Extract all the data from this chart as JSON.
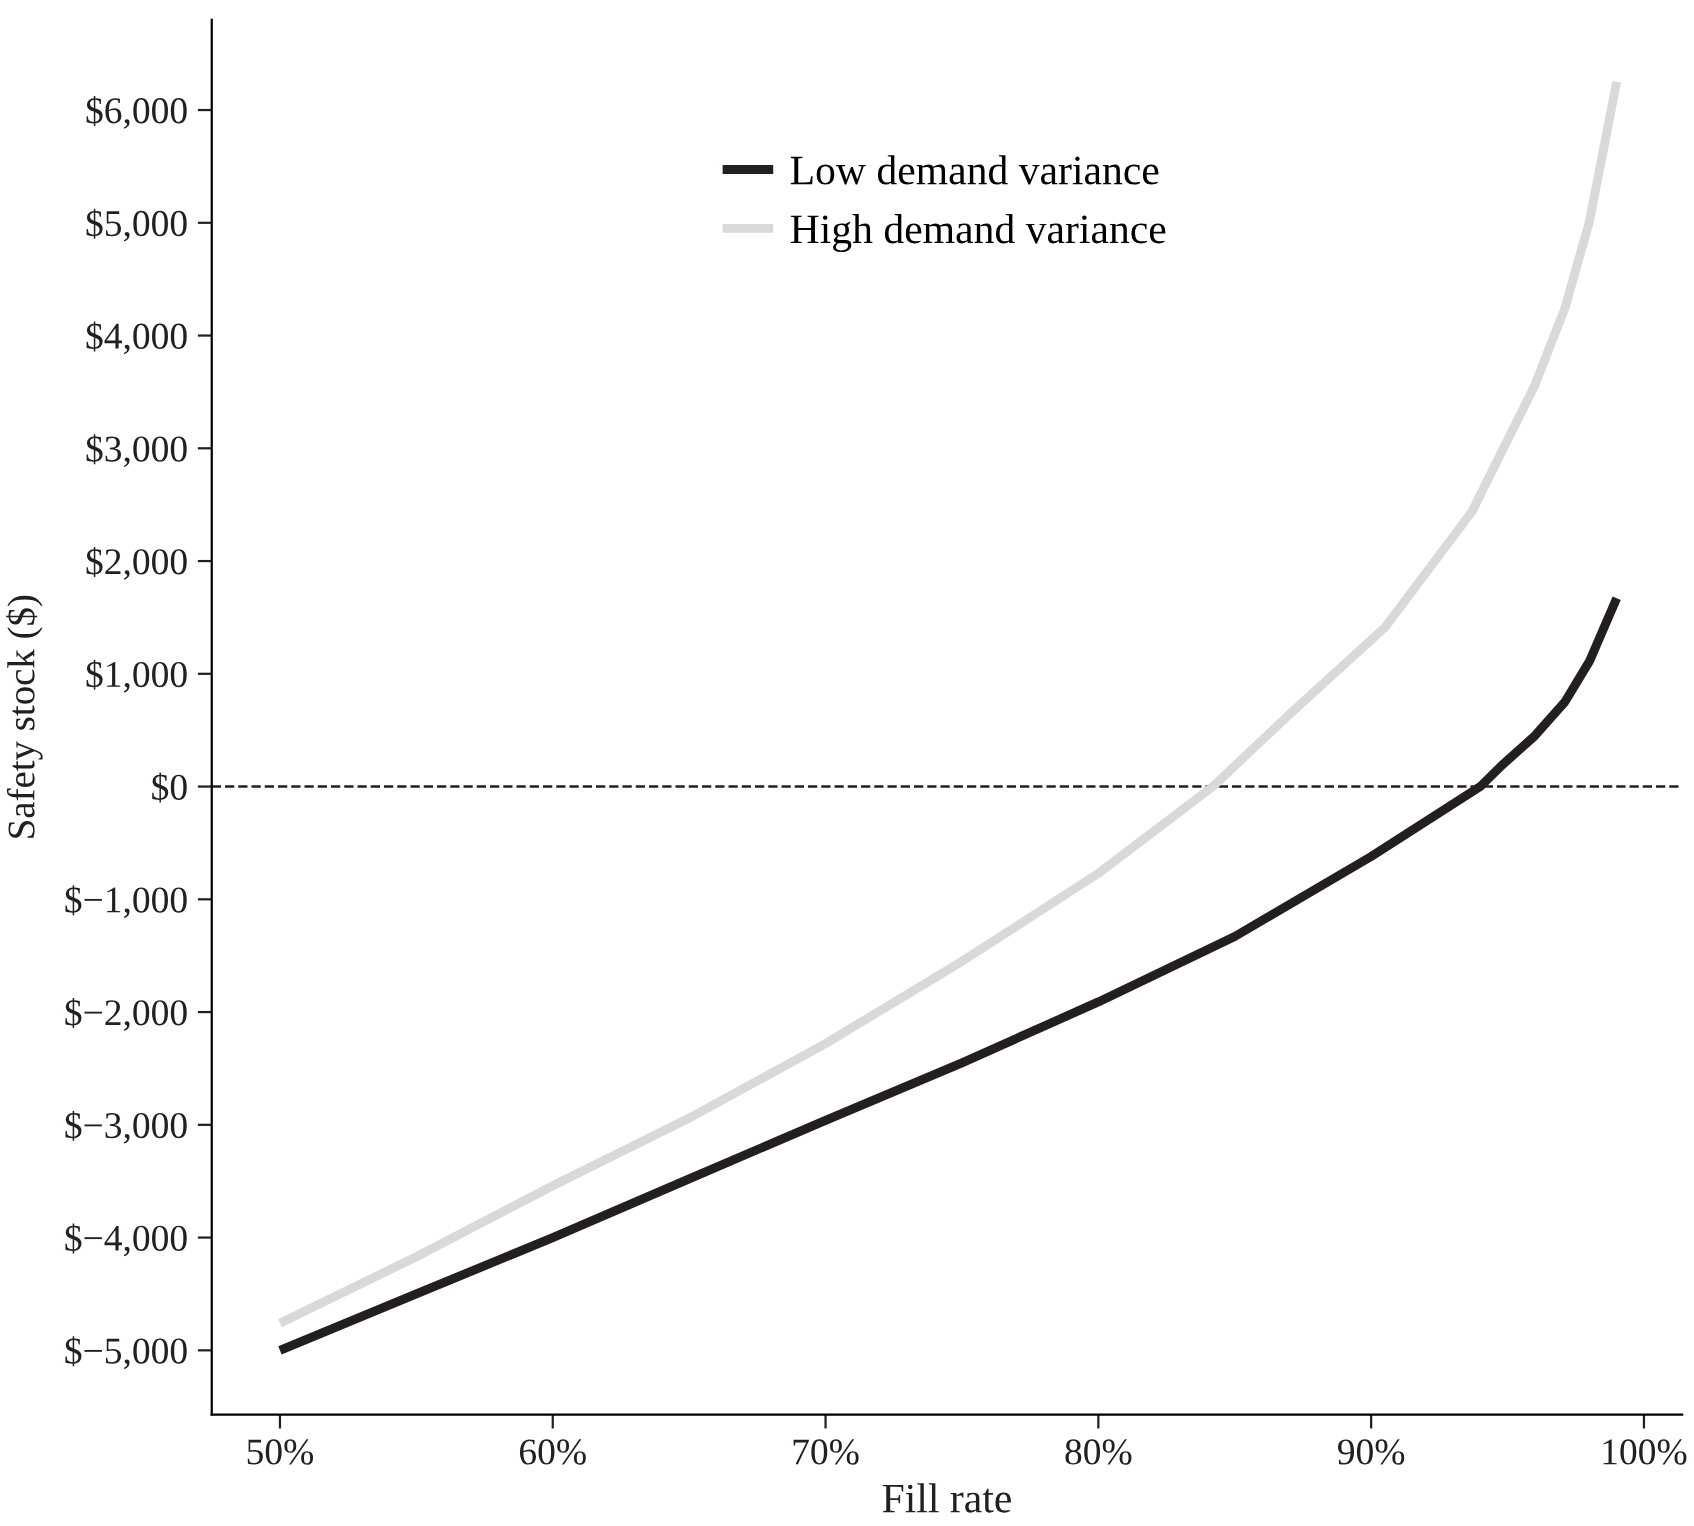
{
  "chart_data": {
    "type": "line",
    "xlabel": "Fill rate",
    "ylabel": "Safety stock ($)",
    "legend": "top",
    "grid": false,
    "marker": "none",
    "line_style": "solid",
    "xlim": [
      47.5,
      101.4
    ],
    "ylim": [
      -5570,
      6800
    ],
    "xticks": [
      {
        "value": 50,
        "label": "50%"
      },
      {
        "value": 60,
        "label": "60%"
      },
      {
        "value": 70,
        "label": "70%"
      },
      {
        "value": 80,
        "label": "80%"
      },
      {
        "value": 90,
        "label": "90%"
      },
      {
        "value": 100,
        "label": "100%"
      }
    ],
    "yticks": [
      {
        "value": -5000,
        "label": "$−5,000"
      },
      {
        "value": -4000,
        "label": "$−4,000"
      },
      {
        "value": -3000,
        "label": "$−3,000"
      },
      {
        "value": -2000,
        "label": "$−2,000"
      },
      {
        "value": -1000,
        "label": "$−1,000"
      },
      {
        "value": 0,
        "label": "$0"
      },
      {
        "value": 1000,
        "label": "$1,000"
      },
      {
        "value": 2000,
        "label": "$2,000"
      },
      {
        "value": 3000,
        "label": "$3,000"
      },
      {
        "value": 4000,
        "label": "$4,000"
      },
      {
        "value": 5000,
        "label": "$5,000"
      },
      {
        "value": 6000,
        "label": "$6,000"
      }
    ],
    "ref_lines": [
      {
        "axis": "y",
        "value": 0,
        "label": null,
        "color": "#231f20",
        "line_style": "dashed"
      }
    ],
    "series": [
      {
        "name": "Low demand variance",
        "color": "#231f20",
        "x": [
          50,
          55,
          60,
          65,
          70,
          75,
          80,
          85,
          90,
          94,
          94.8,
          96,
          97.1,
          98,
          99
        ],
        "values": [
          -5000,
          -4500,
          -4000,
          -3480,
          -2960,
          -2450,
          -1910,
          -1330,
          -620,
          0,
          190,
          450,
          750,
          1110,
          1670
        ]
      },
      {
        "name": "High demand variance",
        "color": "#d9d9d9",
        "x": [
          50,
          55,
          60,
          65,
          70,
          75,
          80,
          84.2,
          87,
          90.5,
          93.7,
          96,
          97.1,
          98,
          99
        ],
        "values": [
          -4760,
          -4170,
          -3540,
          -2940,
          -2280,
          -1550,
          -770,
          0,
          640,
          1410,
          2440,
          3560,
          4240,
          5010,
          6250
        ]
      }
    ]
  }
}
